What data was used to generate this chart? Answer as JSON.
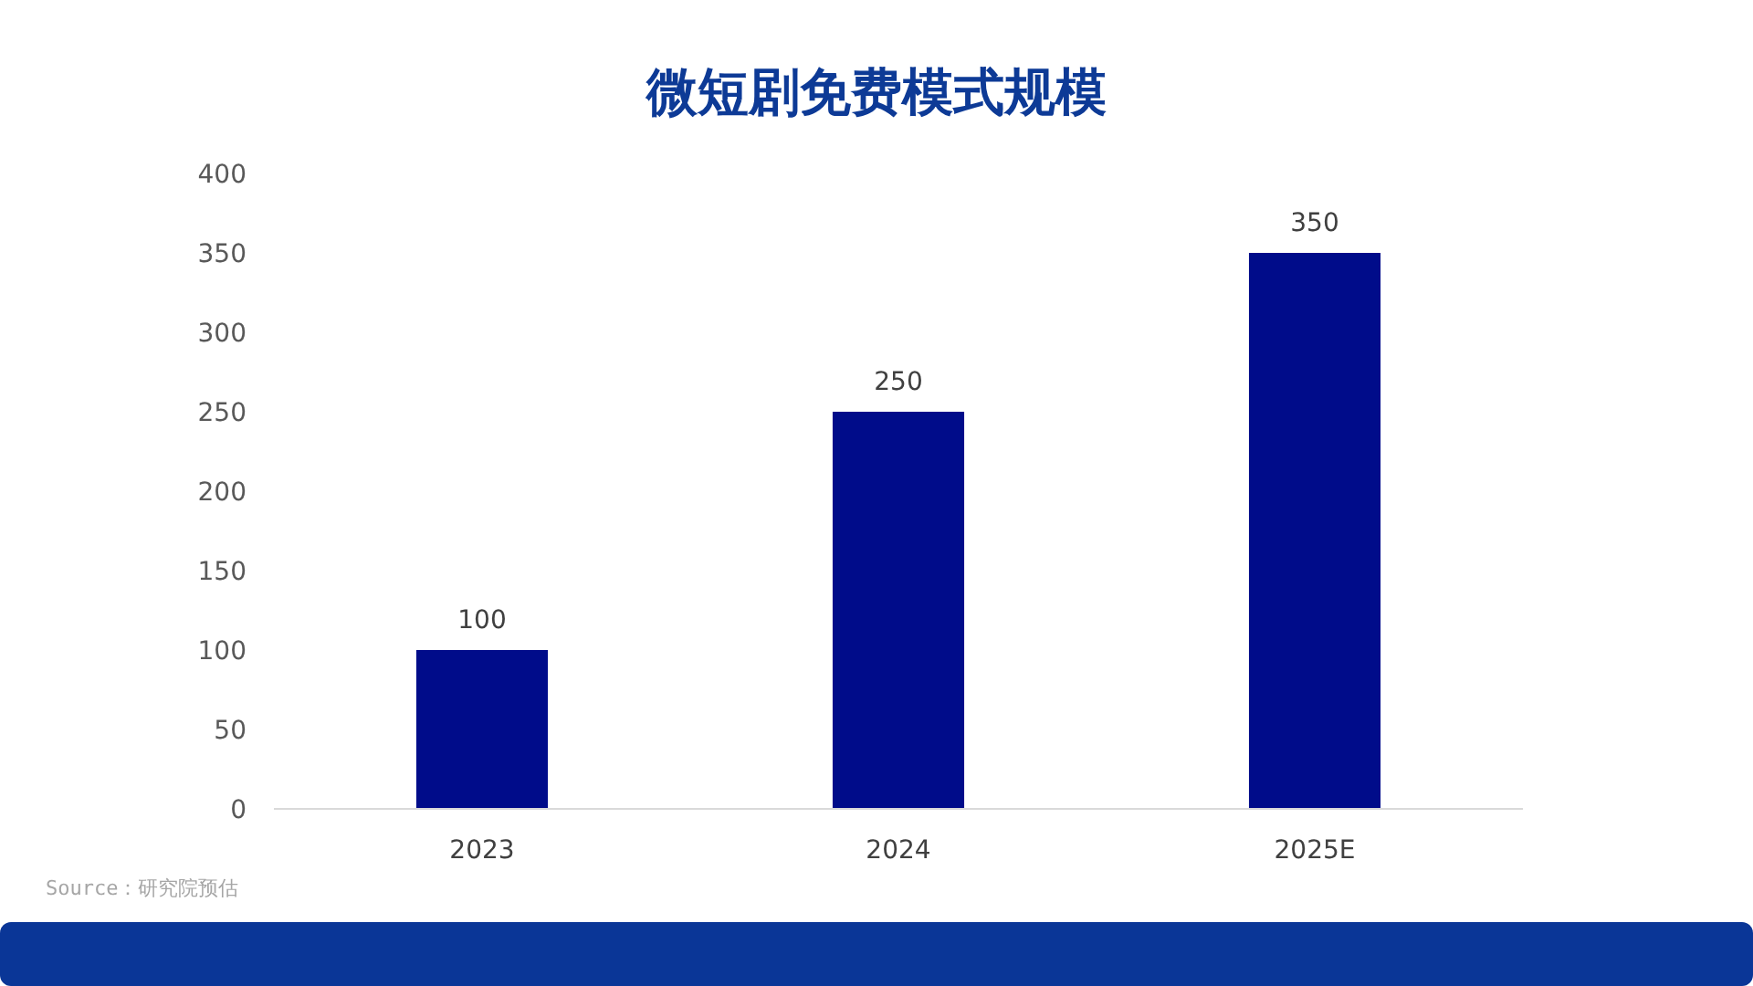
{
  "chart_data": {
    "type": "bar",
    "title": "微短剧免费模式规模",
    "categories": [
      "2023",
      "2024",
      "2025E"
    ],
    "values": [
      100,
      250,
      350
    ],
    "color": "#000c8a",
    "ylim": [
      0,
      400
    ],
    "yticks": [
      0,
      50,
      100,
      150,
      200,
      250,
      300,
      350,
      400
    ],
    "grid": false,
    "data_labels": true,
    "annotations": [
      "Source：研究院预估"
    ]
  }
}
